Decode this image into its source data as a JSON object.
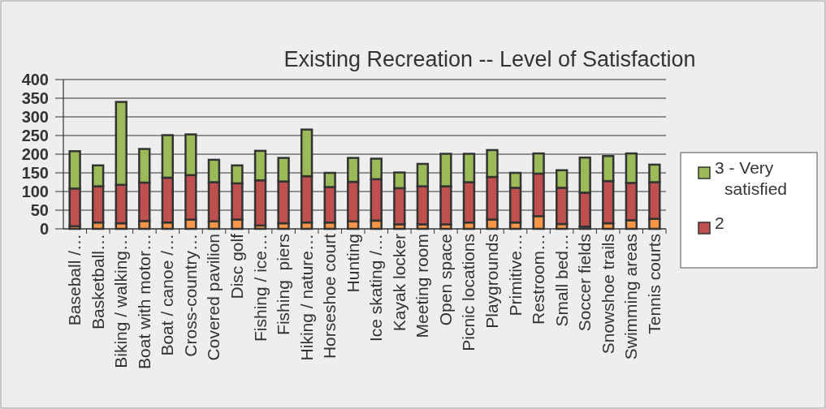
{
  "chart_data": {
    "type": "bar",
    "title": "Existing Recreation -- Level of Satisfaction",
    "stacked": true,
    "grid": "y",
    "legend": "right",
    "categories": [
      "Baseball /…",
      "Basketball…",
      "Biking / walking…",
      "Boat with motor…",
      "Boat / canoe /…",
      "Cross-country…",
      "Covered pavilion",
      "Disc golf",
      "Fishing / ice…",
      "Fishing  piers",
      "Hiking / nature…",
      "Horseshoe court",
      "Hunting",
      "Ice skating /…",
      "Kayak locker",
      "Meeting room",
      "Open space",
      "Picnic locations",
      "Playgrounds",
      "Primitive…",
      "Restroom…",
      "Small bed…",
      "Soccer fields",
      "Snowshoe trails",
      "Swimming areas",
      "Tennis courts"
    ],
    "ylim": [
      0,
      400
    ],
    "yticks": [
      0,
      50,
      100,
      150,
      200,
      250,
      300,
      350,
      400
    ],
    "series": [
      {
        "color": "#f79646",
        "values": [
          7,
          17,
          15,
          21,
          17,
          25,
          20,
          25,
          9,
          15,
          17,
          17,
          20,
          22,
          12,
          12,
          12,
          17,
          25,
          17,
          34,
          13,
          6,
          15,
          23,
          27
        ]
      },
      {
        "name": "2",
        "color": "#c0504d",
        "values": [
          101,
          97,
          103,
          103,
          120,
          119,
          105,
          97,
          121,
          112,
          124,
          95,
          106,
          111,
          97,
          102,
          102,
          108,
          114,
          93,
          114,
          97,
          91,
          113,
          100,
          98
        ]
      },
      {
        "name": "3 - Very satisfied",
        "color": "#9bbb59",
        "values": [
          100,
          56,
          222,
          90,
          114,
          109,
          60,
          48,
          79,
          63,
          125,
          38,
          64,
          55,
          42,
          60,
          87,
          76,
          72,
          40,
          54,
          47,
          94,
          67,
          79,
          47
        ]
      }
    ]
  }
}
